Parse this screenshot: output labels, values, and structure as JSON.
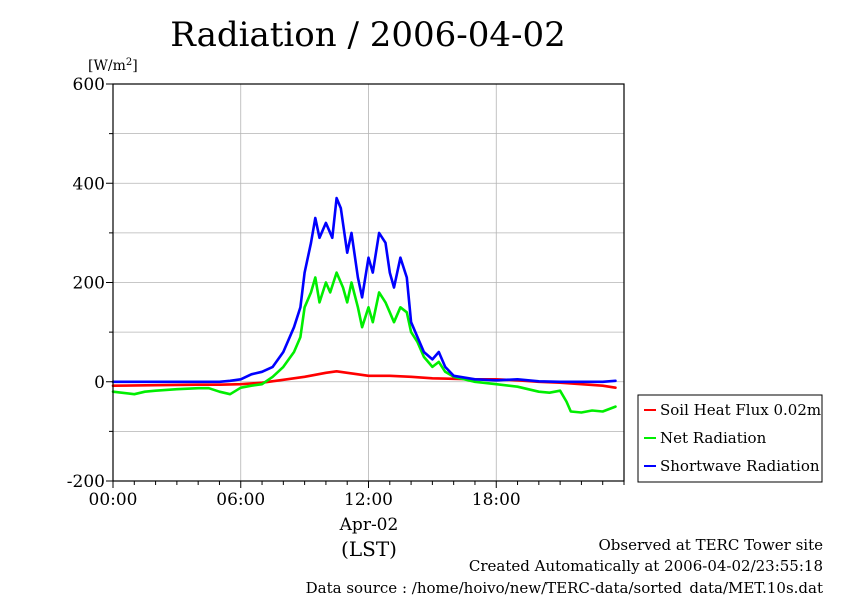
{
  "chart_data": {
    "type": "line",
    "title": "Radiation / 2006-04-02",
    "ylabel_unit": "[W/m",
    "ylabel_sup": "2",
    "ylabel_close": "]",
    "ylim": [
      -200,
      600
    ],
    "xlim": [
      0,
      24
    ],
    "yticks": [
      -200,
      0,
      200,
      400,
      600
    ],
    "ytick_labels": [
      "-200",
      "0",
      "200",
      "400",
      "600"
    ],
    "xticks": [
      0,
      6,
      12,
      18
    ],
    "xtick_labels": [
      "00:00",
      "06:00",
      "12:00",
      "18:00"
    ],
    "date_label": "Apr-02",
    "timezone_label": "(LST)",
    "grid": true,
    "legend_position": "right-bottom-outside",
    "series": [
      {
        "name": "Soil Heat Flux 0.02m",
        "color": "#ff0000",
        "points": [
          [
            0,
            -8
          ],
          [
            2,
            -7
          ],
          [
            4,
            -6
          ],
          [
            5,
            -6
          ],
          [
            6,
            -5
          ],
          [
            7,
            -2
          ],
          [
            8,
            4
          ],
          [
            9,
            10
          ],
          [
            9.5,
            14
          ],
          [
            10,
            18
          ],
          [
            10.5,
            21
          ],
          [
            11,
            18
          ],
          [
            11.5,
            15
          ],
          [
            12,
            12
          ],
          [
            13,
            12
          ],
          [
            14,
            10
          ],
          [
            15,
            7
          ],
          [
            16,
            6
          ],
          [
            17,
            5
          ],
          [
            18,
            5
          ],
          [
            19,
            3
          ],
          [
            20,
            0
          ],
          [
            21,
            -2
          ],
          [
            22,
            -5
          ],
          [
            23,
            -8
          ],
          [
            23.6,
            -12
          ]
        ]
      },
      {
        "name": "Net Radiation",
        "color": "#00ee00",
        "points": [
          [
            0,
            -20
          ],
          [
            1,
            -25
          ],
          [
            1.5,
            -20
          ],
          [
            2,
            -18
          ],
          [
            3,
            -15
          ],
          [
            4,
            -13
          ],
          [
            4.5,
            -13
          ],
          [
            5,
            -20
          ],
          [
            5.5,
            -25
          ],
          [
            6,
            -12
          ],
          [
            6.5,
            -8
          ],
          [
            7,
            -5
          ],
          [
            7.5,
            10
          ],
          [
            8,
            30
          ],
          [
            8.5,
            60
          ],
          [
            8.8,
            90
          ],
          [
            9,
            150
          ],
          [
            9.3,
            180
          ],
          [
            9.5,
            210
          ],
          [
            9.7,
            160
          ],
          [
            10,
            200
          ],
          [
            10.2,
            180
          ],
          [
            10.5,
            220
          ],
          [
            10.8,
            190
          ],
          [
            11,
            160
          ],
          [
            11.2,
            200
          ],
          [
            11.5,
            150
          ],
          [
            11.7,
            110
          ],
          [
            12,
            150
          ],
          [
            12.2,
            120
          ],
          [
            12.5,
            180
          ],
          [
            12.8,
            160
          ],
          [
            13,
            140
          ],
          [
            13.2,
            120
          ],
          [
            13.5,
            150
          ],
          [
            13.8,
            140
          ],
          [
            14,
            100
          ],
          [
            14.3,
            80
          ],
          [
            14.6,
            50
          ],
          [
            15,
            30
          ],
          [
            15.3,
            40
          ],
          [
            15.6,
            20
          ],
          [
            16,
            10
          ],
          [
            17,
            0
          ],
          [
            18,
            -5
          ],
          [
            19,
            -10
          ],
          [
            20,
            -20
          ],
          [
            20.5,
            -22
          ],
          [
            21,
            -18
          ],
          [
            21.3,
            -40
          ],
          [
            21.5,
            -60
          ],
          [
            22,
            -62
          ],
          [
            22.5,
            -58
          ],
          [
            23,
            -60
          ],
          [
            23.6,
            -50
          ]
        ]
      },
      {
        "name": "Shortwave Radiation",
        "color": "#0000ff",
        "points": [
          [
            0,
            0
          ],
          [
            1,
            0
          ],
          [
            2,
            0
          ],
          [
            3,
            0
          ],
          [
            4,
            0
          ],
          [
            5,
            0
          ],
          [
            5.5,
            2
          ],
          [
            6,
            5
          ],
          [
            6.5,
            15
          ],
          [
            7,
            20
          ],
          [
            7.5,
            30
          ],
          [
            8,
            60
          ],
          [
            8.5,
            110
          ],
          [
            8.8,
            150
          ],
          [
            9,
            220
          ],
          [
            9.3,
            280
          ],
          [
            9.5,
            330
          ],
          [
            9.7,
            290
          ],
          [
            10,
            320
          ],
          [
            10.3,
            290
          ],
          [
            10.5,
            370
          ],
          [
            10.7,
            350
          ],
          [
            11,
            260
          ],
          [
            11.2,
            300
          ],
          [
            11.5,
            210
          ],
          [
            11.7,
            170
          ],
          [
            12,
            250
          ],
          [
            12.2,
            220
          ],
          [
            12.5,
            300
          ],
          [
            12.8,
            280
          ],
          [
            13,
            220
          ],
          [
            13.2,
            190
          ],
          [
            13.5,
            250
          ],
          [
            13.8,
            210
          ],
          [
            14,
            120
          ],
          [
            14.3,
            90
          ],
          [
            14.6,
            60
          ],
          [
            15,
            45
          ],
          [
            15.3,
            60
          ],
          [
            15.6,
            30
          ],
          [
            16,
            12
          ],
          [
            17,
            5
          ],
          [
            18,
            3
          ],
          [
            19,
            5
          ],
          [
            20,
            1
          ],
          [
            21,
            0
          ],
          [
            22,
            0
          ],
          [
            23,
            0
          ],
          [
            23.6,
            2
          ]
        ]
      }
    ]
  },
  "footer": {
    "line1": "Observed at TERC Tower site",
    "line2": "Created Automatically at 2006-04-02/23:55:18",
    "line3": "Data source : /home/hoivo/new/TERC-data/sorted_data/MET.10s.dat"
  }
}
